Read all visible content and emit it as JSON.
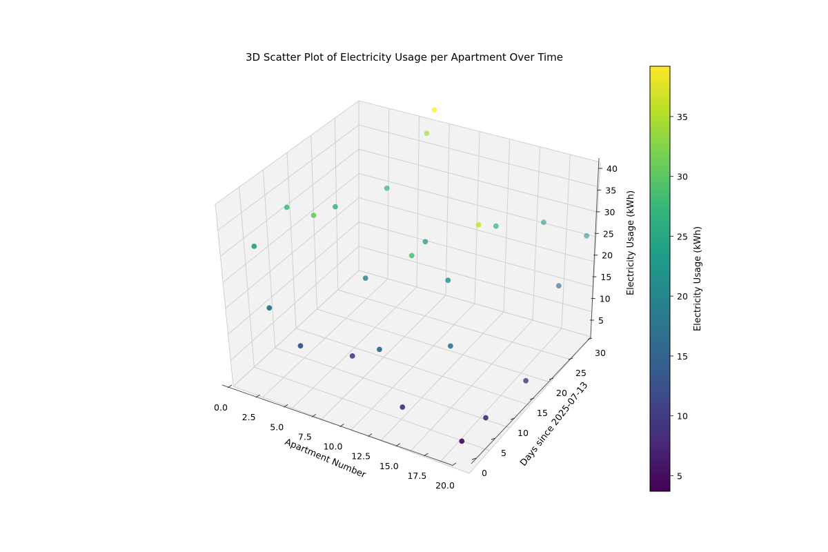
{
  "chart_data": {
    "type": "scatter",
    "title": "3D Scatter Plot of Electricity Usage per Apartment Over Time",
    "xlabel": "Apartment Number",
    "ylabel": "Days since 2025-07-13",
    "zlabel": "Electricity Usage (kWh)",
    "colorbar_label": "Electricity Usage (kWh)",
    "colormap": "viridis",
    "colormap_stops": [
      "#440154",
      "#482878",
      "#3e4a89",
      "#31688e",
      "#26828e",
      "#1f9e89",
      "#35b779",
      "#6ece58",
      "#b5de2b",
      "#fde725"
    ],
    "xlim": [
      0,
      20
    ],
    "ylim": [
      0,
      30
    ],
    "zlim": [
      4,
      40
    ],
    "clim": [
      3.7,
      39.2
    ],
    "x_ticks": [
      "0.0",
      "2.5",
      "5.0",
      "7.5",
      "10.0",
      "12.5",
      "15.0",
      "17.5",
      "20.0"
    ],
    "y_ticks": [
      "0",
      "5",
      "10",
      "15",
      "20",
      "25",
      "30"
    ],
    "z_ticks": [
      "5",
      "10",
      "15",
      "20",
      "25",
      "30",
      "35",
      "40"
    ],
    "colorbar_ticks": [
      "5",
      "10",
      "15",
      "20",
      "25",
      "30",
      "35"
    ],
    "grid": true,
    "points": [
      {
        "x": 9.0,
        "y": 23.0,
        "z": 39.2
      },
      {
        "x": 8.0,
        "y": 24.0,
        "z": 34.0
      },
      {
        "x": 17.0,
        "y": 11.0,
        "z": 36.5
      },
      {
        "x": 18.0,
        "y": 4.0,
        "z": 5.0
      },
      {
        "x": 19.0,
        "y": 7.0,
        "z": 7.5
      },
      {
        "x": 20.0,
        "y": 14.0,
        "z": 9.0
      },
      {
        "x": 0.0,
        "y": 5.0,
        "z": 24.5
      },
      {
        "x": 1.0,
        "y": 10.0,
        "z": 28.0
      },
      {
        "x": 2.0,
        "y": 3.0,
        "z": 17.0
      },
      {
        "x": 3.0,
        "y": 16.0,
        "z": 25.0
      },
      {
        "x": 4.0,
        "y": 8.0,
        "z": 30.5
      },
      {
        "x": 5.0,
        "y": 2.0,
        "z": 13.5
      },
      {
        "x": 6.0,
        "y": 20.0,
        "z": 27.0
      },
      {
        "x": 7.0,
        "y": 12.0,
        "z": 19.0
      },
      {
        "x": 8.0,
        "y": 6.0,
        "z": 11.0
      },
      {
        "x": 10.0,
        "y": 18.0,
        "z": 22.5
      },
      {
        "x": 11.0,
        "y": 4.0,
        "z": 16.0
      },
      {
        "x": 12.0,
        "y": 9.0,
        "z": 29.0
      },
      {
        "x": 13.0,
        "y": 15.0,
        "z": 20.5
      },
      {
        "x": 14.0,
        "y": 1.0,
        "z": 10.5
      },
      {
        "x": 15.0,
        "y": 21.0,
        "z": 26.0
      },
      {
        "x": 16.0,
        "y": 7.0,
        "z": 18.0
      },
      {
        "x": 17.0,
        "y": 27.0,
        "z": 23.0
      },
      {
        "x": 19.0,
        "y": 25.0,
        "z": 15.5
      },
      {
        "x": 20.0,
        "y": 29.0,
        "z": 21.0
      }
    ]
  }
}
